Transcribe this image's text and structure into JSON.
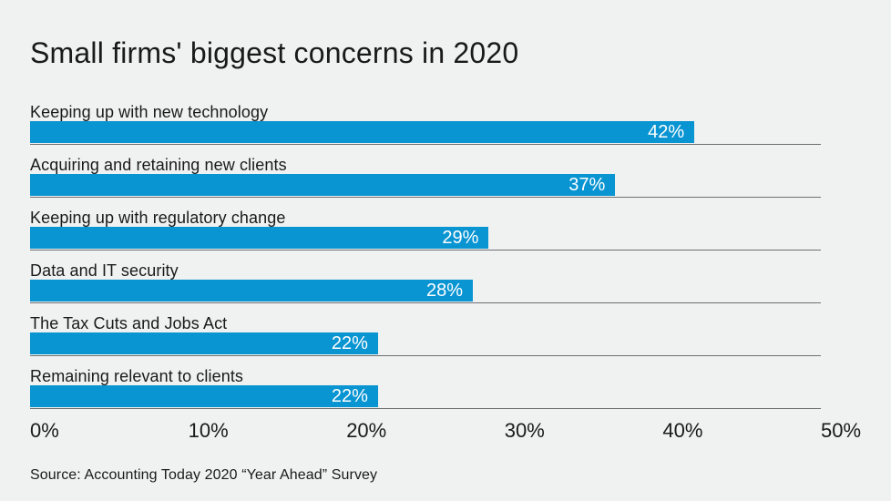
{
  "chart": {
    "title": "Small firms' biggest concerns in 2020",
    "source": "Source: Accounting Today 2020 “Year Ahead” Survey",
    "accent_color": "#0994d2",
    "background_color": "#f0f1f1",
    "text_color": "#1a1a1a",
    "rule_color": "#6e6f71"
  },
  "chart_data": {
    "type": "bar",
    "orientation": "horizontal",
    "title": "Small firms' biggest concerns in 2020",
    "categories": [
      "Keeping up with new technology",
      "Acquiring and retaining new clients",
      "Keeping up with regulatory change",
      "Data and IT security",
      "The Tax Cuts and Jobs Act",
      "Remaining relevant to clients"
    ],
    "values": [
      42,
      37,
      29,
      28,
      22,
      22
    ],
    "value_labels": [
      "42%",
      "37%",
      "29%",
      "28%",
      "22%",
      "22%"
    ],
    "xlabel": "",
    "ylabel": "",
    "xlim": [
      0,
      50
    ],
    "x_ticks": [
      "0%",
      "10%",
      "20%",
      "30%",
      "40%",
      "50%"
    ],
    "grid": "baseline rule under each bar",
    "legend": "none",
    "value_label_position": "inside-right",
    "value_label_color": "#ffffff"
  }
}
